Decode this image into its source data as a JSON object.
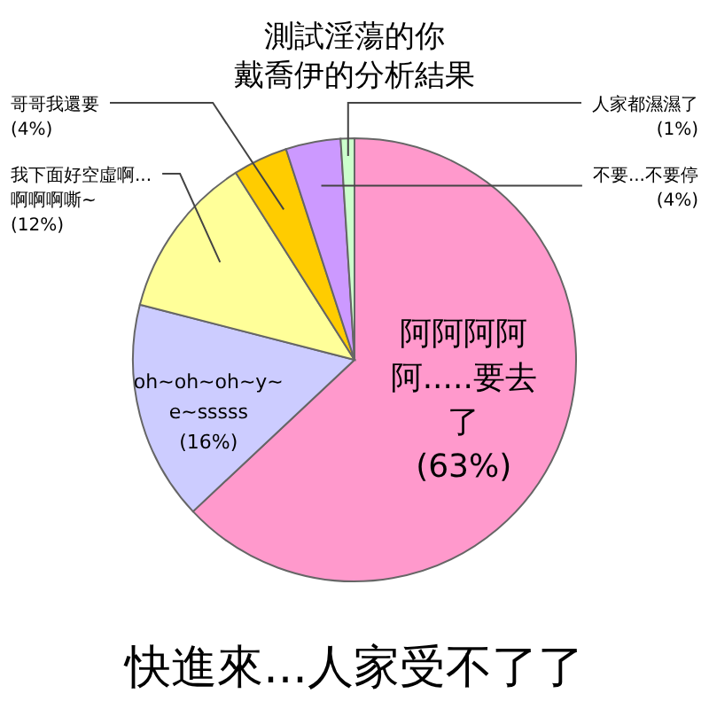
{
  "chart_data": {
    "type": "pie",
    "title": "測試淫蕩的你",
    "subtitle": "戴喬伊的分析結果",
    "categories": [
      "阿阿阿阿阿.....要去了",
      "oh~oh~oh~y~e~sssss",
      "我下面好空虛啊...啊啊啊嘶~",
      "哥哥我還要",
      "不要...不要停",
      "人家都濕濕了"
    ],
    "values": [
      63,
      16,
      12,
      4,
      4,
      1
    ],
    "value_labels": [
      "(63%)",
      "(16%)",
      "(12%)",
      "(4%)",
      "(4%)",
      "(1%)"
    ],
    "colors": [
      "#ff99cc",
      "#ccccff",
      "#ffff99",
      "#ffcc00",
      "#cc99ff",
      "#ccffcc"
    ],
    "annotations": [
      "快進來...人家受不了了"
    ]
  }
}
